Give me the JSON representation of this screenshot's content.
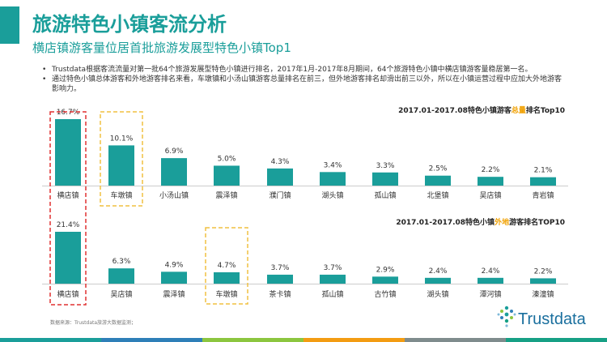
{
  "header": {
    "title": "旅游特色小镇客流分析",
    "subtitle": "横店镇游客量位居首批旅游发展型特色小镇Top1"
  },
  "bullets": [
    "Trustdata根据客流流量对第一批64个旅游发展型特色小镇进行排名，2017年1月-2017年8月期间，64个旅游特色小镇中横店镇游客量稳居第一名。",
    "通过特色小镇总体游客和外地游客排名来看，车墩镇和小汤山镇游客总量排名在前三，但外地游客排名却滑出前三以外，所以在小镇运营过程中应加大外地游客影响力。"
  ],
  "chart_data": [
    {
      "type": "bar",
      "title": {
        "prefix": "2017.01-2017.08特色小镇游客",
        "highlight": "总量",
        "suffix": "排名Top10"
      },
      "categories": [
        "横店镇",
        "车墩镇",
        "小汤山镇",
        "震泽镇",
        "濮门镇",
        "湖头镇",
        "孤山镇",
        "北堡镇",
        "吴店镇",
        "青岩镇"
      ],
      "values": [
        16.7,
        10.1,
        6.9,
        5.0,
        4.3,
        3.4,
        3.3,
        2.5,
        2.2,
        2.1
      ],
      "value_labels": [
        "16.7%",
        "10.1%",
        "6.9%",
        "5.0%",
        "4.3%",
        "3.4%",
        "3.3%",
        "2.5%",
        "2.2%",
        "2.1%"
      ],
      "ylim": [
        0,
        18
      ],
      "highlight": {
        "red": "横店镇",
        "yellow": "车墩镇"
      }
    },
    {
      "type": "bar",
      "title": {
        "prefix": "2017.01-2017.08特色小镇",
        "highlight": "外地",
        "suffix": "游客排名TOP10"
      },
      "categories": [
        "横店镇",
        "吴店镇",
        "震泽镇",
        "车墩镇",
        "茶卡镇",
        "孤山镇",
        "古竹镇",
        "湖头镇",
        "潭河镇",
        "溱潼镇"
      ],
      "values": [
        21.4,
        6.3,
        4.9,
        4.7,
        3.7,
        3.7,
        2.9,
        2.4,
        2.4,
        2.2
      ],
      "value_labels": [
        "21.4%",
        "6.3%",
        "4.9%",
        "4.7%",
        "3.7%",
        "3.7%",
        "2.9%",
        "2.4%",
        "2.4%",
        "2.2%"
      ],
      "ylim": [
        0,
        23
      ],
      "highlight": {
        "red": "横店镇",
        "yellow": "车墩镇"
      }
    }
  ],
  "source": "数据来源：Trustdata旅游大数据监测；",
  "logo": {
    "text": "Trustdata"
  },
  "colors": {
    "bar": "#1a9e9a",
    "title": "#1a9e9a",
    "highlight_text": "#f0a000",
    "red_box": "#e03030",
    "yellow_box": "#f0c040",
    "footer": [
      "#1a9e9a",
      "#2e7fb8",
      "#8cc63f",
      "#f39c12",
      "#7f8c8d",
      "#16a085"
    ]
  }
}
